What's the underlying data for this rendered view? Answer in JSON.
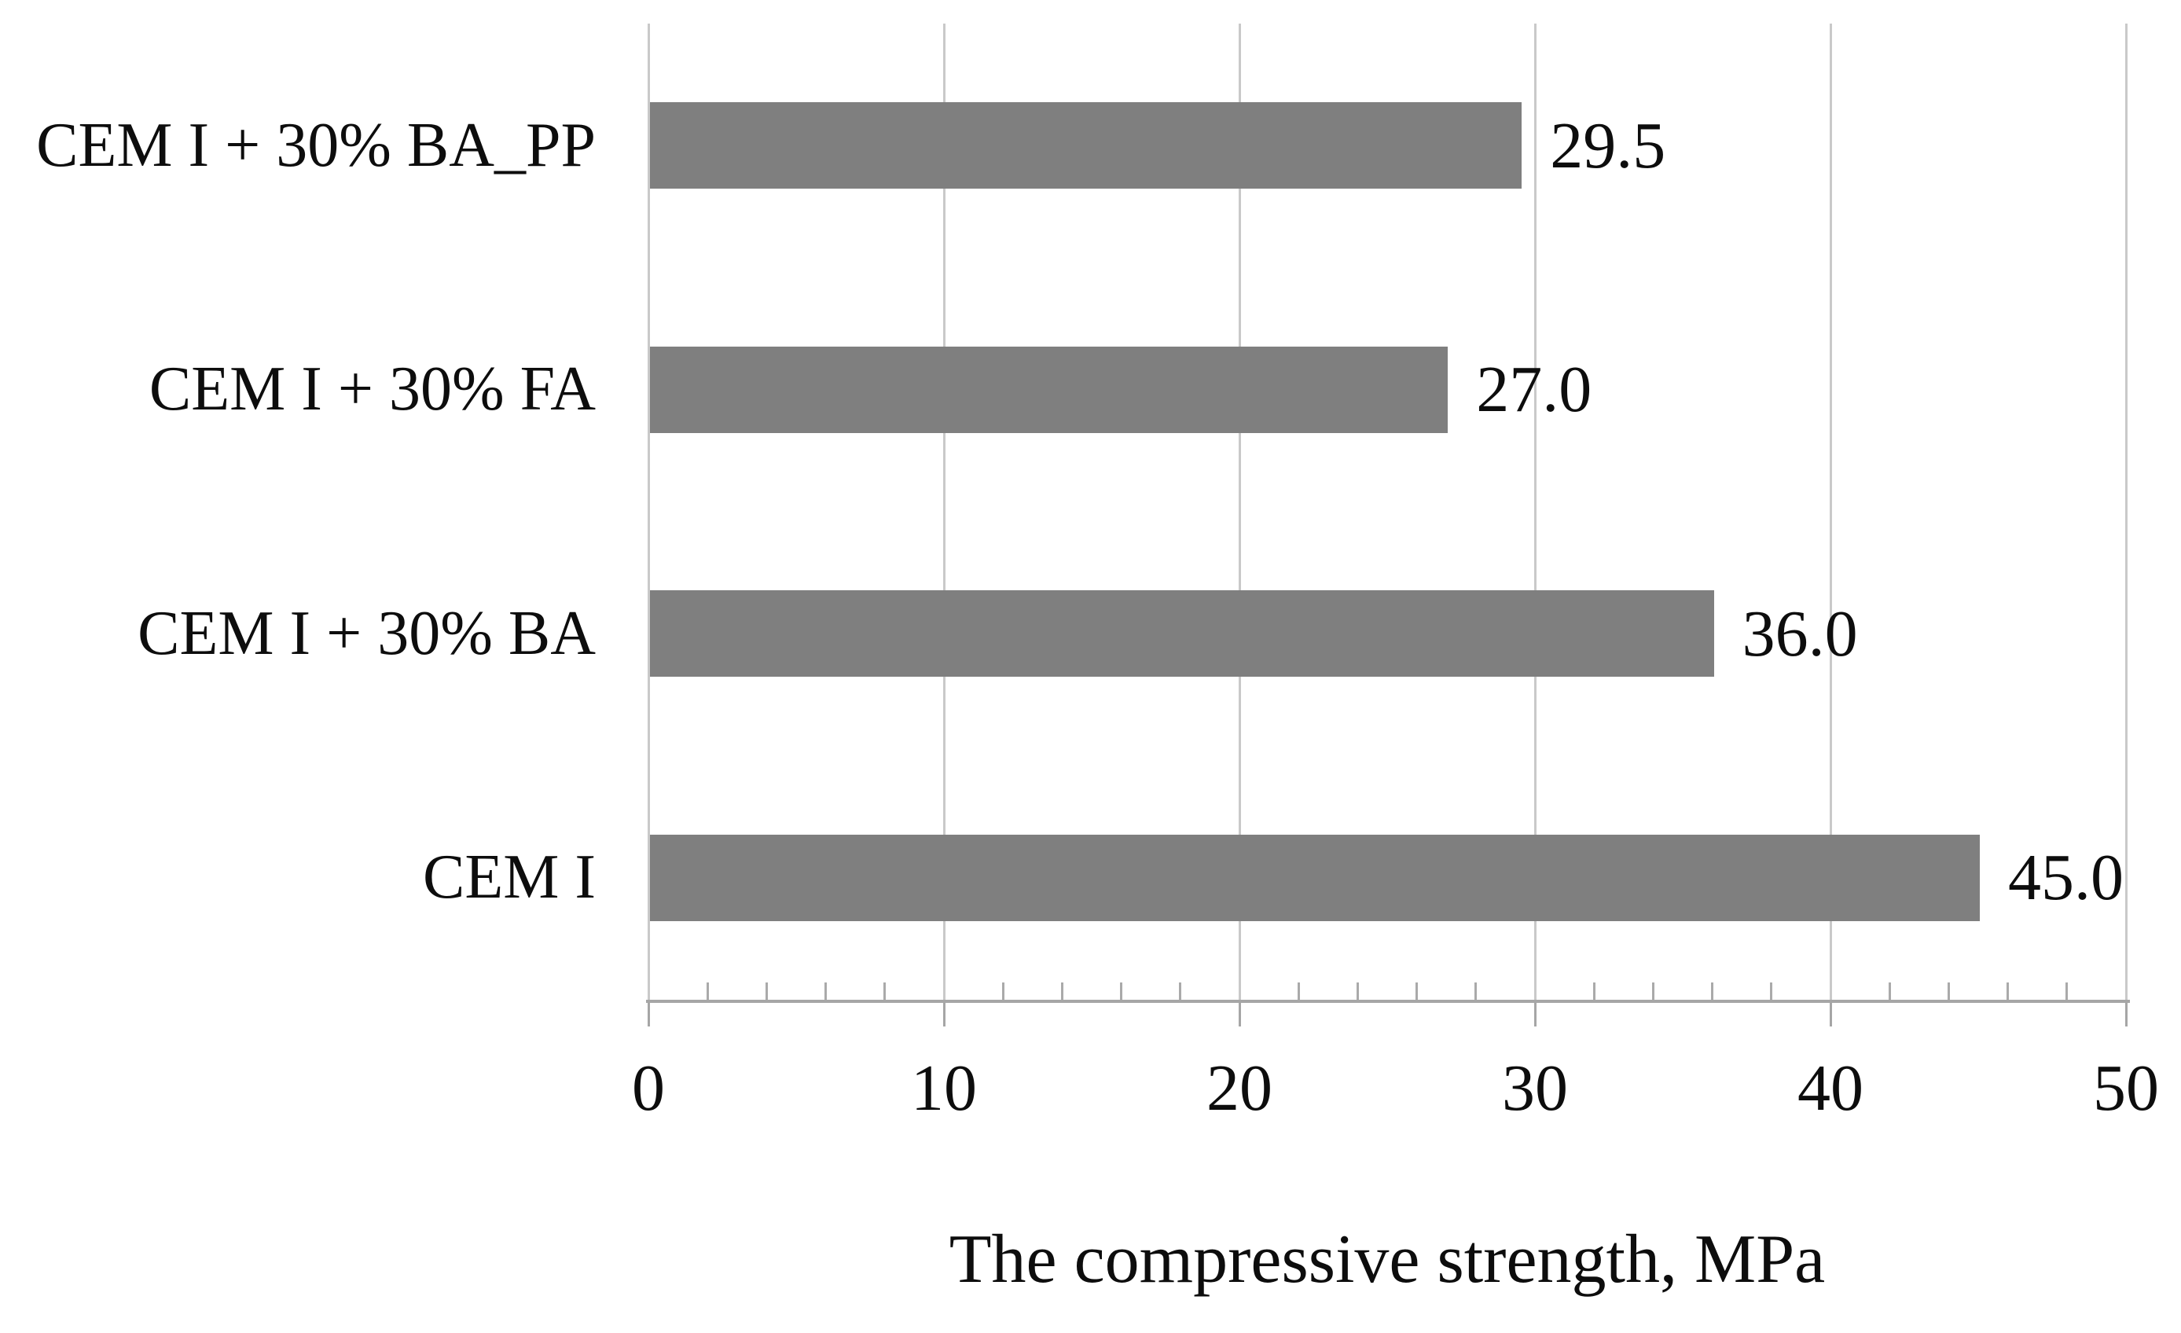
{
  "chart_data": {
    "type": "bar",
    "orientation": "horizontal",
    "title": "",
    "xlabel": "The compressive strength, MPa",
    "ylabel": "",
    "categories": [
      "CEM I + 30% BA_PP",
      "CEM I + 30% FA",
      "CEM I + 30% BA",
      "CEM I"
    ],
    "values": [
      29.5,
      27.0,
      36.0,
      45.0
    ],
    "value_labels": [
      "29.5",
      "27.0",
      "36.0",
      "45.0"
    ],
    "xlim": [
      0,
      50
    ],
    "x_ticks": [
      0,
      10,
      20,
      30,
      40,
      50
    ],
    "x_tick_labels": [
      "0",
      "10",
      "20",
      "30",
      "40",
      "50"
    ],
    "major_tick_step": 10,
    "minor_tick_step": 2,
    "grid": "vertical-major-only",
    "legend": "none",
    "colors": {
      "bar": "#7f7f7f",
      "gridline": "#c9c9c9",
      "axis": "#a6a6a6",
      "minor_tick": "#aaaaaa",
      "text": "#0d0d0d"
    }
  }
}
